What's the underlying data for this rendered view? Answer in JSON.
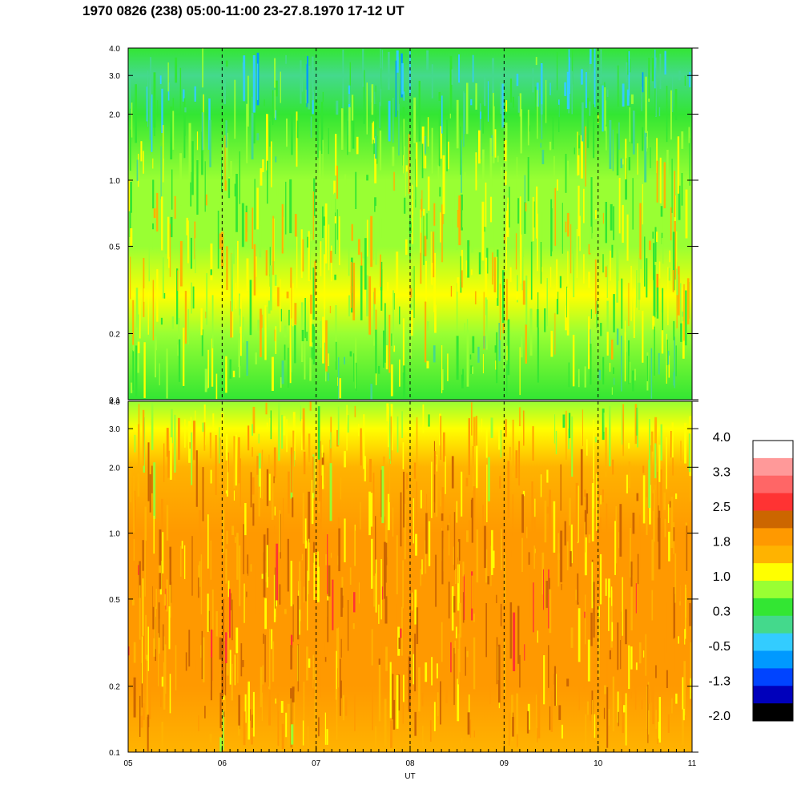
{
  "chart_data": {
    "type": "heatmap",
    "title": "1970 0826 (238) 05:00-11:00 23-27.8.1970  17-12 UT",
    "xlabel": "UT",
    "x_ticks": [
      "05",
      "06",
      "07",
      "08",
      "09",
      "10",
      "11"
    ],
    "xlim": [
      5,
      11
    ],
    "y_scale": "log",
    "panels": [
      {
        "ylim": [
          0.1,
          4.0
        ],
        "y_ticks": [
          {
            "value": 0.1,
            "label": "0.1"
          },
          {
            "value": 0.2,
            "label": "0.2"
          },
          {
            "value": 0.5,
            "label": "0.5"
          },
          {
            "value": 1.0,
            "label": "1.0"
          },
          {
            "value": 2.0,
            "label": "2.0"
          },
          {
            "value": 3.0,
            "label": "3.0"
          },
          {
            "value": 4.0,
            "label": "4.0"
          }
        ],
        "profile": [
          {
            "y": 4.0,
            "level": 0.3
          },
          {
            "y": 3.0,
            "level": 0.0
          },
          {
            "y": 2.0,
            "level": 0.4
          },
          {
            "y": 1.0,
            "level": 0.9
          },
          {
            "y": 0.5,
            "level": 1.0
          },
          {
            "y": 0.3,
            "level": 1.1
          },
          {
            "y": 0.2,
            "level": 0.9
          },
          {
            "y": 0.1,
            "level": 0.5
          }
        ]
      },
      {
        "ylim": [
          0.1,
          4.0
        ],
        "y_ticks": [
          {
            "value": 0.1,
            "label": "0.1"
          },
          {
            "value": 0.2,
            "label": "0.2"
          },
          {
            "value": 0.5,
            "label": "0.5"
          },
          {
            "value": 1.0,
            "label": "1.0"
          },
          {
            "value": 2.0,
            "label": "2.0"
          },
          {
            "value": 3.0,
            "label": "3.0"
          },
          {
            "value": 4.0,
            "label": "4.0"
          }
        ],
        "profile": [
          {
            "y": 4.0,
            "level": 0.8
          },
          {
            "y": 3.0,
            "level": 1.2
          },
          {
            "y": 2.0,
            "level": 1.5
          },
          {
            "y": 1.0,
            "level": 1.8
          },
          {
            "y": 0.5,
            "level": 1.9
          },
          {
            "y": 0.3,
            "level": 1.9
          },
          {
            "y": 0.2,
            "level": 1.8
          },
          {
            "y": 0.1,
            "level": 1.6
          }
        ]
      }
    ],
    "colorbar": {
      "labels": [
        "4.0",
        "3.3",
        "2.5",
        "1.8",
        "1.0",
        "0.3",
        "-0.5",
        "-1.3",
        "-2.0"
      ],
      "colors": [
        "#ffffff",
        "#ff9999",
        "#ff6666",
        "#ff3333",
        "#cc6600",
        "#ff9900",
        "#ffb300",
        "#ffff00",
        "#99ff33",
        "#33e633",
        "#44d98c",
        "#33ccff",
        "#0099ff",
        "#0044ff",
        "#0000bb",
        "#000000"
      ]
    },
    "dashed_gridlines_x": [
      6,
      7,
      8,
      9,
      10
    ],
    "grid": false
  }
}
